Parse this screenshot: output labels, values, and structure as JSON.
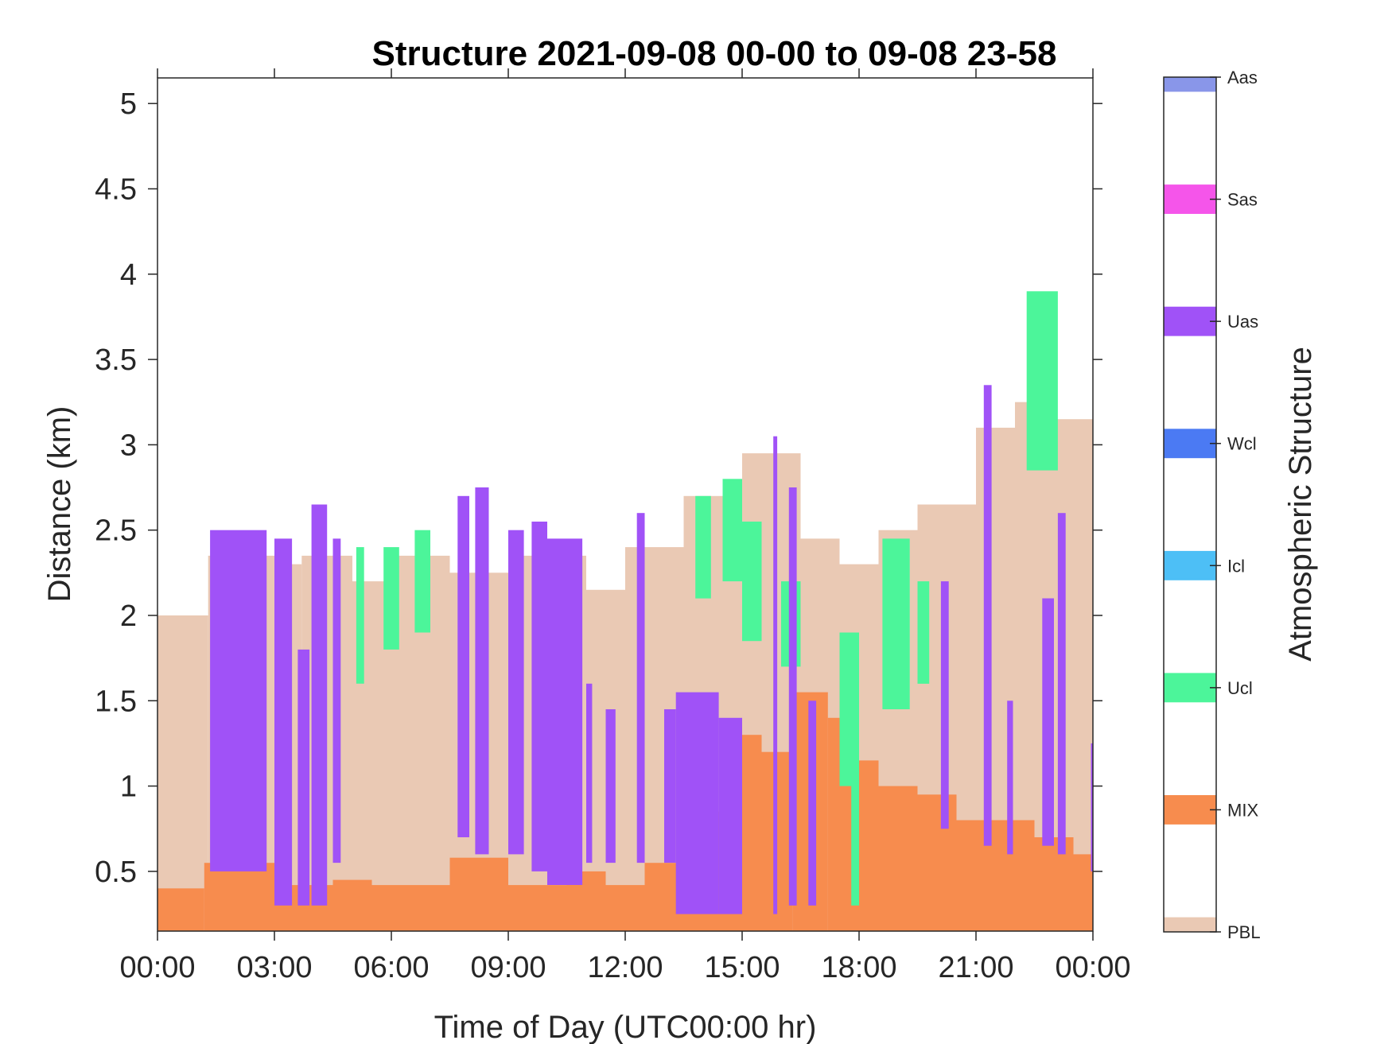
{
  "chart_data": {
    "type": "heatmap",
    "title": "Structure 2021-09-08 00-00 to 09-08 23-58",
    "xlabel": "Time of Day (UTC00:00 hr)",
    "ylabel": "Distance (km)",
    "xlim_hours": [
      0,
      24
    ],
    "ylim": [
      0.15,
      5.15
    ],
    "x_ticks": [
      {
        "value": 0,
        "label": "00:00"
      },
      {
        "value": 3,
        "label": "03:00"
      },
      {
        "value": 6,
        "label": "06:00"
      },
      {
        "value": 9,
        "label": "09:00"
      },
      {
        "value": 12,
        "label": "12:00"
      },
      {
        "value": 15,
        "label": "15:00"
      },
      {
        "value": 18,
        "label": "18:00"
      },
      {
        "value": 21,
        "label": "21:00"
      },
      {
        "value": 24,
        "label": "00:00"
      }
    ],
    "y_ticks": [
      {
        "value": 0.5,
        "label": "0.5"
      },
      {
        "value": 1,
        "label": "1"
      },
      {
        "value": 1.5,
        "label": "1.5"
      },
      {
        "value": 2,
        "label": "2"
      },
      {
        "value": 2.5,
        "label": "2.5"
      },
      {
        "value": 3,
        "label": "3"
      },
      {
        "value": 3.5,
        "label": "3.5"
      },
      {
        "value": 4,
        "label": "4"
      },
      {
        "value": 4.5,
        "label": "4.5"
      },
      {
        "value": 5,
        "label": "5"
      }
    ],
    "grid": false,
    "colorbar": {
      "label": "Atmospheric Structure",
      "categories": [
        {
          "name": "PBL",
          "color": "#eac9b4",
          "level": 0.0
        },
        {
          "name": "MIX",
          "color": "#f78c4e",
          "level": 1.0
        },
        {
          "name": "Ucl",
          "color": "#4cf59a",
          "level": 2.0
        },
        {
          "name": "Icl",
          "color": "#4dbff6",
          "level": 3.0
        },
        {
          "name": "Wcl",
          "color": "#4b7af3",
          "level": 4.0
        },
        {
          "name": "Uas",
          "color": "#a052f7",
          "level": 5.0
        },
        {
          "name": "Sas",
          "color": "#f555ea",
          "level": 6.0
        },
        {
          "name": "Aas",
          "color": "#8996e9",
          "level": 7.0
        }
      ]
    },
    "regions": [
      {
        "category": "PBL",
        "segments": [
          [
            0.0,
            1.3,
            2.0
          ],
          [
            1.3,
            3.0,
            2.35
          ],
          [
            3.0,
            3.7,
            2.3
          ],
          [
            3.7,
            5.0,
            2.35
          ],
          [
            5.0,
            6.0,
            2.2
          ],
          [
            6.0,
            7.5,
            2.35
          ],
          [
            7.5,
            9.0,
            2.25
          ],
          [
            9.0,
            11.0,
            2.35
          ],
          [
            11.0,
            12.0,
            2.15
          ],
          [
            12.0,
            13.5,
            2.4
          ],
          [
            13.5,
            15.0,
            2.7
          ],
          [
            15.0,
            16.5,
            2.95
          ],
          [
            16.5,
            17.5,
            2.45
          ],
          [
            17.5,
            18.5,
            2.3
          ],
          [
            18.5,
            19.5,
            2.5
          ],
          [
            19.5,
            21.0,
            2.65
          ],
          [
            21.0,
            22.0,
            3.1
          ],
          [
            22.0,
            23.0,
            3.25
          ],
          [
            23.0,
            24.0,
            3.15
          ]
        ]
      },
      {
        "category": "MIX",
        "segments": [
          [
            0.0,
            1.2,
            0.4
          ],
          [
            1.2,
            3.0,
            0.55
          ],
          [
            3.0,
            4.5,
            0.42
          ],
          [
            4.5,
            5.5,
            0.45
          ],
          [
            5.5,
            7.5,
            0.42
          ],
          [
            7.5,
            9.0,
            0.58
          ],
          [
            9.0,
            10.5,
            0.42
          ],
          [
            10.5,
            11.5,
            0.5
          ],
          [
            11.5,
            12.5,
            0.42
          ],
          [
            12.5,
            13.5,
            0.55
          ],
          [
            13.5,
            15.0,
            0.85
          ],
          [
            15.0,
            15.5,
            1.3
          ],
          [
            15.5,
            16.3,
            1.2
          ],
          [
            16.3,
            17.2,
            1.55
          ],
          [
            17.2,
            18.0,
            1.4
          ],
          [
            18.0,
            18.5,
            1.15
          ],
          [
            18.5,
            19.5,
            1.0
          ],
          [
            19.5,
            20.5,
            0.95
          ],
          [
            20.5,
            21.5,
            0.8
          ],
          [
            21.5,
            22.5,
            0.8
          ],
          [
            22.5,
            23.5,
            0.7
          ],
          [
            23.5,
            24.0,
            0.6
          ]
        ]
      },
      {
        "category": "Ucl",
        "segments": [
          [
            3.2,
            3.35,
            1.25,
            2.25
          ],
          [
            5.1,
            5.3,
            1.6,
            2.4
          ],
          [
            5.8,
            6.2,
            1.8,
            2.4
          ],
          [
            6.6,
            7.0,
            1.9,
            2.5
          ],
          [
            13.8,
            14.2,
            2.1,
            2.7
          ],
          [
            14.5,
            15.0,
            2.2,
            2.8
          ],
          [
            15.0,
            15.5,
            1.85,
            2.55
          ],
          [
            16.0,
            16.5,
            1.7,
            2.2
          ],
          [
            17.5,
            18.0,
            1.0,
            1.9
          ],
          [
            17.8,
            18.0,
            0.3,
            1.1
          ],
          [
            18.6,
            19.3,
            1.45,
            2.45
          ],
          [
            19.5,
            19.8,
            1.6,
            2.2
          ],
          [
            22.3,
            23.1,
            2.85,
            3.9
          ]
        ]
      },
      {
        "category": "Uas",
        "segments": [
          [
            1.35,
            2.8,
            0.5,
            2.5
          ],
          [
            3.0,
            3.45,
            0.3,
            2.45
          ],
          [
            3.6,
            3.9,
            0.3,
            1.8
          ],
          [
            3.95,
            4.35,
            0.3,
            2.65
          ],
          [
            4.5,
            4.7,
            0.55,
            2.45
          ],
          [
            7.7,
            8.0,
            0.7,
            2.7
          ],
          [
            8.15,
            8.5,
            0.6,
            2.75
          ],
          [
            9.0,
            9.4,
            0.6,
            2.5
          ],
          [
            9.6,
            10.0,
            0.5,
            2.55
          ],
          [
            10.0,
            10.9,
            0.42,
            2.45
          ],
          [
            11.0,
            11.15,
            0.55,
            1.6
          ],
          [
            11.5,
            11.75,
            0.55,
            1.45
          ],
          [
            12.3,
            12.5,
            0.55,
            2.6
          ],
          [
            13.0,
            13.3,
            0.55,
            1.45
          ],
          [
            13.3,
            14.4,
            0.25,
            1.55
          ],
          [
            14.4,
            15.0,
            0.25,
            1.4
          ],
          [
            15.8,
            15.9,
            0.25,
            3.05
          ],
          [
            16.2,
            16.4,
            0.3,
            2.75
          ],
          [
            16.7,
            16.9,
            0.3,
            1.5
          ],
          [
            20.1,
            20.3,
            0.75,
            2.2
          ],
          [
            21.2,
            21.4,
            0.65,
            3.35
          ],
          [
            21.8,
            21.95,
            0.6,
            1.5
          ],
          [
            22.7,
            23.0,
            0.65,
            2.1
          ],
          [
            23.1,
            23.3,
            0.6,
            2.6
          ],
          [
            23.95,
            24.0,
            0.5,
            1.25
          ]
        ]
      }
    ]
  }
}
